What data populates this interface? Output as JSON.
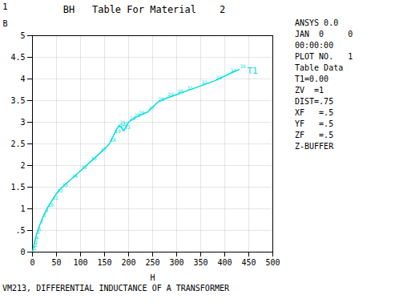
{
  "chart_data": {
    "type": "line",
    "title": "BH   Table For Material    2",
    "xlabel": "H",
    "ylabel": "B",
    "x": [
      0.0,
      1.5,
      3.0,
      5.0,
      7.5,
      10.0,
      15.0,
      20.0,
      25.0,
      30.0,
      40.0,
      50.0,
      60.0,
      80.0,
      100.0,
      120.0,
      140.0,
      160.0,
      170.0,
      175.0,
      180.0,
      185.0,
      190.0,
      200.0,
      210.0,
      220.0,
      240.0,
      260.0,
      280.0,
      300.0,
      320.0,
      350.0,
      380.0,
      410.0,
      430.0
    ],
    "values": [
      0.0,
      0.08,
      0.15,
      0.25,
      0.37,
      0.46,
      0.62,
      0.76,
      0.88,
      1.0,
      1.18,
      1.35,
      1.48,
      1.68,
      1.88,
      2.08,
      2.28,
      2.5,
      2.72,
      2.84,
      2.92,
      2.88,
      2.8,
      3.0,
      3.08,
      3.14,
      3.24,
      3.46,
      3.56,
      3.64,
      3.72,
      3.84,
      3.96,
      4.12,
      4.22
    ],
    "point_labels": [
      "1",
      "2",
      "3",
      "4",
      "5",
      "6",
      "7",
      "8",
      "9",
      "10",
      "11",
      "12",
      "13",
      "14",
      "15",
      "16",
      "17",
      "18",
      "19",
      "20",
      "21",
      "22",
      "23",
      "24",
      "25",
      "26",
      "27",
      "28",
      "29",
      "30",
      "31",
      "32",
      "33",
      "34",
      "35"
    ],
    "color": "#00DDDD",
    "curve_label": "T1",
    "xlim": [
      0,
      500
    ],
    "xticks": [
      0,
      50,
      100,
      150,
      200,
      250,
      300,
      350,
      400,
      450,
      500
    ],
    "ylim": [
      0,
      5
    ],
    "yticks": [
      0,
      {
        "value": 0.5,
        "label": ".5"
      },
      1,
      1.5,
      2,
      2.5,
      3,
      3.5,
      4,
      4.5,
      5
    ],
    "grid": true,
    "corner_label": "1",
    "footer": "VM213, DIFFERENTIAL INDUCTANCE OF A TRANSFORMER",
    "side_text": [
      "ANSYS 0.0",
      "JAN  0     0",
      "00:00:00",
      "PLOT NO.   1",
      "Table Data",
      "T1=0.00",
      "ZV  =1",
      "DIST=.75",
      "XF   =.5",
      "YF   =.5",
      "ZF   =.5",
      "Z-BUFFER"
    ]
  }
}
